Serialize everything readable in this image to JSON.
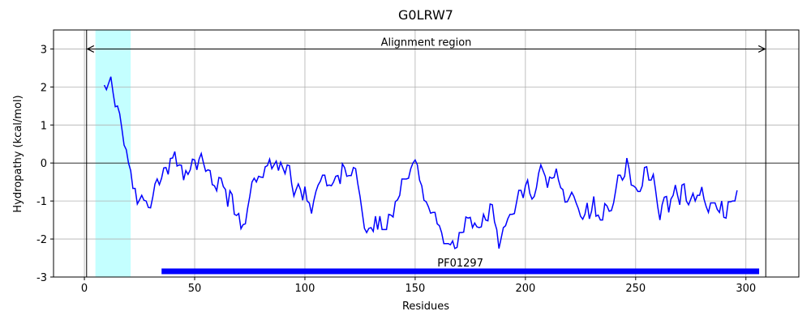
{
  "chart_data": {
    "type": "line",
    "title": "G0LRW7",
    "xlabel": "Residues",
    "ylabel": "Hydropathy (kcal/mol)",
    "x": [
      9,
      10,
      11,
      12,
      13,
      14,
      15,
      16,
      17,
      18,
      19,
      20,
      21,
      22,
      23,
      24,
      25,
      26,
      27,
      28,
      29,
      30,
      31,
      32,
      33,
      34,
      35,
      36,
      37,
      38,
      39,
      40,
      41,
      42,
      43,
      44,
      45,
      46,
      47,
      48,
      49,
      50,
      51,
      52,
      53,
      54,
      55,
      56,
      57,
      58,
      59,
      60,
      61,
      62,
      63,
      64,
      65,
      66,
      67,
      68,
      69,
      70,
      71,
      72,
      73,
      74,
      75,
      76,
      77,
      78,
      79,
      80,
      81,
      82,
      83,
      84,
      85,
      86,
      87,
      88,
      89,
      90,
      91,
      92,
      93,
      94,
      95,
      96,
      97,
      98,
      99,
      100,
      101,
      102,
      103,
      104,
      105,
      106,
      107,
      108,
      109,
      110,
      111,
      112,
      113,
      114,
      115,
      116,
      117,
      118,
      119,
      120,
      121,
      122,
      123,
      124,
      125,
      126,
      127,
      128,
      129,
      130,
      131,
      132,
      133,
      134,
      135,
      136,
      137,
      138,
      139,
      140,
      141,
      142,
      143,
      144,
      145,
      146,
      147,
      148,
      149,
      150,
      151,
      152,
      153,
      154,
      155,
      156,
      157,
      158,
      159,
      160,
      161,
      162,
      163,
      164,
      165,
      166,
      167,
      168,
      169,
      170,
      171,
      172,
      173,
      174,
      175,
      176,
      177,
      178,
      179,
      180,
      181,
      182,
      183,
      184,
      185,
      186,
      187,
      188,
      189,
      190,
      191,
      192,
      193,
      194,
      195,
      196,
      197,
      198,
      199,
      200,
      201,
      202,
      203,
      204,
      205,
      206,
      207,
      208,
      209,
      210,
      211,
      212,
      213,
      214,
      215,
      216,
      217,
      218,
      219,
      220,
      221,
      222,
      223,
      224,
      225,
      226,
      227,
      228,
      229,
      230,
      231,
      232,
      233,
      234,
      235,
      236,
      237,
      238,
      239,
      240,
      241,
      242,
      243,
      244,
      245,
      246,
      247,
      248,
      249,
      250,
      251,
      252,
      253,
      254,
      255,
      256,
      257,
      258,
      259,
      260,
      261,
      262,
      263,
      264,
      265,
      266,
      267,
      268,
      269,
      270,
      271,
      272,
      273,
      274,
      275,
      276,
      277,
      278,
      279,
      280,
      281,
      282,
      283,
      284,
      285,
      286,
      287,
      288,
      289,
      290,
      291,
      292,
      293,
      294,
      295,
      296
    ],
    "series": [
      {
        "color": "#0000ff",
        "values": [
          2.05,
          1.93,
          2.1,
          2.27,
          1.85,
          1.48,
          1.5,
          1.3,
          0.9,
          0.47,
          0.35,
          0,
          -0.2,
          -0.67,
          -0.67,
          -1.08,
          -0.97,
          -0.85,
          -0.98,
          -1.0,
          -1.17,
          -1.18,
          -0.9,
          -0.55,
          -0.42,
          -0.57,
          -0.4,
          -0.13,
          -0.12,
          -0.3,
          0.12,
          0.13,
          0.3,
          -0.08,
          -0.05,
          -0.06,
          -0.45,
          -0.2,
          -0.3,
          -0.18,
          0.1,
          0.08,
          -0.18,
          0.1,
          0.25,
          0,
          -0.22,
          -0.18,
          -0.2,
          -0.57,
          -0.6,
          -0.73,
          -0.38,
          -0.4,
          -0.62,
          -0.7,
          -1.15,
          -0.73,
          -0.83,
          -1.35,
          -1.38,
          -1.33,
          -1.73,
          -1.62,
          -1.6,
          -1.2,
          -0.88,
          -0.5,
          -0.4,
          -0.5,
          -0.35,
          -0.37,
          -0.38,
          -0.1,
          -0.07,
          0.1,
          -0.15,
          -0.05,
          0.05,
          -0.2,
          0.02,
          -0.13,
          -0.28,
          -0.05,
          -0.07,
          -0.55,
          -0.87,
          -0.7,
          -0.55,
          -0.7,
          -0.98,
          -0.62,
          -1.0,
          -1.05,
          -1.33,
          -1.0,
          -0.75,
          -0.58,
          -0.48,
          -0.32,
          -0.32,
          -0.6,
          -0.58,
          -0.6,
          -0.5,
          -0.35,
          -0.33,
          -0.55,
          -0.02,
          -0.12,
          -0.35,
          -0.33,
          -0.33,
          -0.12,
          -0.15,
          -0.55,
          -0.88,
          -1.3,
          -1.72,
          -1.83,
          -1.72,
          -1.7,
          -1.8,
          -1.4,
          -1.75,
          -1.4,
          -1.75,
          -1.75,
          -1.75,
          -1.35,
          -1.37,
          -1.42,
          -1.02,
          -0.97,
          -0.85,
          -0.42,
          -0.42,
          -0.42,
          -0.4,
          -0.15,
          0,
          0.08,
          -0.05,
          -0.45,
          -0.6,
          -0.98,
          -1.02,
          -1.15,
          -1.32,
          -1.3,
          -1.3,
          -1.6,
          -1.65,
          -1.83,
          -2.12,
          -2.12,
          -2.12,
          -2.15,
          -2.05,
          -2.25,
          -2.22,
          -1.83,
          -1.83,
          -1.82,
          -1.42,
          -1.45,
          -1.43,
          -1.7,
          -1.58,
          -1.68,
          -1.7,
          -1.68,
          -1.35,
          -1.5,
          -1.52,
          -1.08,
          -1.1,
          -1.55,
          -1.75,
          -2.25,
          -1.98,
          -1.7,
          -1.65,
          -1.47,
          -1.35,
          -1.35,
          -1.33,
          -1.03,
          -0.72,
          -0.72,
          -0.92,
          -0.6,
          -0.45,
          -0.8,
          -0.95,
          -0.88,
          -0.65,
          -0.27,
          -0.05,
          -0.2,
          -0.35,
          -0.65,
          -0.37,
          -0.4,
          -0.38,
          -0.15,
          -0.45,
          -0.65,
          -0.7,
          -1.03,
          -1.02,
          -0.9,
          -0.77,
          -0.88,
          -1.05,
          -1.2,
          -1.4,
          -1.48,
          -1.35,
          -1.05,
          -1.47,
          -1.27,
          -0.88,
          -1.4,
          -1.37,
          -1.5,
          -1.5,
          -1.07,
          -1.13,
          -1.27,
          -1.25,
          -1.05,
          -0.7,
          -0.32,
          -0.32,
          -0.45,
          -0.35,
          0.13,
          -0.15,
          -0.58,
          -0.6,
          -0.65,
          -0.75,
          -0.75,
          -0.6,
          -0.12,
          -0.1,
          -0.45,
          -0.45,
          -0.3,
          -0.7,
          -1.15,
          -1.5,
          -1.1,
          -0.9,
          -0.88,
          -1.3,
          -0.95,
          -0.85,
          -0.58,
          -0.85,
          -1.1,
          -0.58,
          -0.55,
          -1.0,
          -1.1,
          -0.95,
          -0.8,
          -1.0,
          -0.85,
          -0.85,
          -0.63,
          -0.95,
          -1.15,
          -1.3,
          -1.05,
          -1.05,
          -1.05,
          -1.22,
          -1.3,
          -1.0,
          -1.43,
          -1.45,
          -1.02,
          -1.02,
          -1.0,
          -1.0,
          -0.72
        ]
      }
    ],
    "xlim": [
      -14,
      324
    ],
    "ylim": [
      -3,
      3.5
    ],
    "xticks": [
      0,
      50,
      100,
      150,
      200,
      250,
      300
    ],
    "yticks": [
      -3,
      -2,
      -1,
      0,
      1,
      2,
      3
    ],
    "grid": true,
    "hline": 0,
    "vlines": [
      1,
      309
    ],
    "span": {
      "range": [
        5,
        21
      ],
      "color": "#c4ffff"
    },
    "arrow": {
      "text": "Alignment region",
      "x": [
        1,
        309
      ],
      "y": 3
    },
    "domain": {
      "label": "PF01297",
      "start": 35,
      "end": 306,
      "y": -2.85,
      "color": "#0000ff"
    }
  }
}
